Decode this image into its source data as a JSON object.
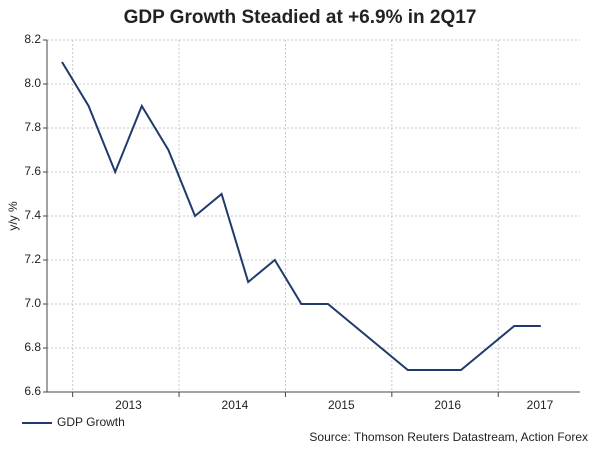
{
  "chart_data": {
    "type": "line",
    "title": "GDP Growth Steadied at +6.9% in 2Q17",
    "y_label": "y/y %",
    "source": "Source: Thomson Reuters Datastream, Action Forex",
    "categories": [
      null,
      null,
      null,
      null,
      null,
      null,
      null,
      null,
      null,
      null,
      null,
      null,
      null,
      null,
      null,
      null,
      null,
      null,
      null
    ],
    "year_labels": [
      "2013",
      "2014",
      "2015",
      "2016",
      "2017"
    ],
    "series": [
      {
        "name": "GDP Growth",
        "color": "#1f3a6b",
        "values": [
          8.1,
          7.9,
          7.6,
          7.9,
          7.7,
          7.4,
          7.5,
          7.1,
          7.2,
          7.0,
          7.0,
          6.9,
          6.8,
          6.7,
          6.7,
          6.7,
          6.8,
          6.9,
          6.9
        ]
      }
    ],
    "ylim": [
      6.6,
      8.2
    ],
    "yticks": [
      6.6,
      6.8,
      {
        "value": 7,
        "label": "7.0"
      },
      7.2,
      7.4,
      7.6,
      7.8,
      {
        "value": 8,
        "label": "8.0"
      },
      8.2
    ],
    "grid": true,
    "legend": "bottom-left"
  }
}
